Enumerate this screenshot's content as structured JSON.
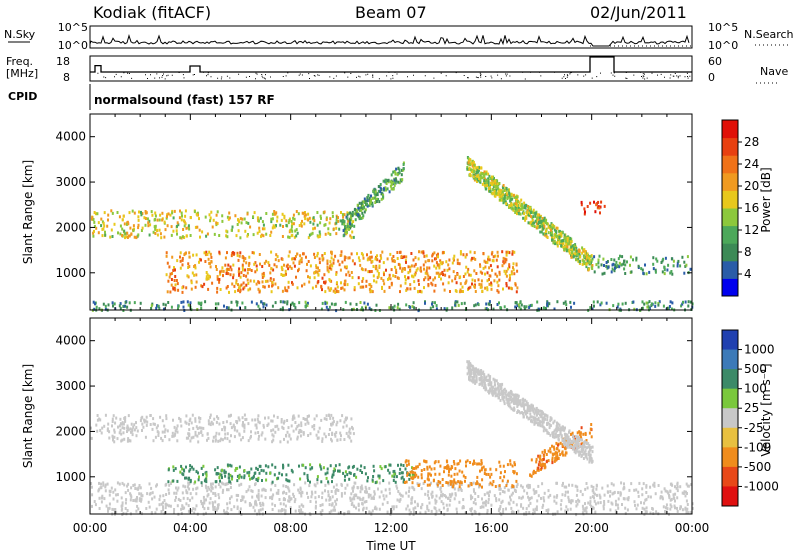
{
  "header": {
    "station": "Kodiak (fitACF)",
    "beam": "Beam 07",
    "date": "02/Jun/2011"
  },
  "strip": {
    "nsky_label": "N.Sky",
    "nsky_ticks": [
      "10^5",
      "10^0"
    ],
    "nsearch_label": "N.Search",
    "nsearch_ticks": [
      "10^5",
      "10^0"
    ],
    "freq_label": "Freq.",
    "freq_unit": "[MHz]",
    "freq_ticks": [
      "18",
      "8"
    ],
    "nave_label": "Nave",
    "nave_ticks": [
      "60",
      "0"
    ],
    "cpid_label": "CPID",
    "cpid_text": "normalsound (fast) 157 RF"
  },
  "panels": {
    "ylabel": "Slant Range [km]",
    "yticks": [
      "4000",
      "3000",
      "2000",
      "1000"
    ],
    "xlabel": "Time UT",
    "xticks": [
      "00:00",
      "04:00",
      "08:00",
      "12:00",
      "16:00",
      "20:00",
      "00:00"
    ]
  },
  "colorbars": {
    "power": {
      "label": "Power [dB]",
      "ticks": [
        "28",
        "24",
        "20",
        "16",
        "12",
        "8",
        "4"
      ],
      "colors": [
        "#0000ee",
        "#2a5ca8",
        "#3c8a56",
        "#4ca85a",
        "#8cc83c",
        "#e8c81c",
        "#f09a20",
        "#f07218",
        "#e84010",
        "#e01008"
      ]
    },
    "velocity": {
      "label": "Velocity [m s⁻¹]",
      "ticks": [
        "1000",
        "500",
        "100",
        "25",
        "-25",
        "-100",
        "-500",
        "-1000"
      ],
      "colors": [
        "#2040b0",
        "#3c7ab8",
        "#3c8a68",
        "#7ac83c",
        "#c8c8c8",
        "#e8c040",
        "#f08c1c",
        "#e84818",
        "#e01010"
      ]
    }
  },
  "chart_data": [
    {
      "type": "line",
      "title": "N.Sky / N.Search",
      "xlabel": "Time UT",
      "ylabel": "N.Sky",
      "xlim": [
        "00:00",
        "24:00"
      ],
      "ylim": [
        1,
        100000
      ],
      "log_scale": true,
      "series": [
        {
          "name": "N.Sky",
          "x": [
            "00:00",
            "02:00",
            "04:00",
            "06:00",
            "08:00",
            "10:00",
            "12:00",
            "14:00",
            "16:00",
            "18:00",
            "20:00",
            "22:00",
            "24:00"
          ],
          "values": [
            10,
            12,
            10,
            14,
            11,
            13,
            12,
            15,
            11,
            12,
            3,
            9,
            10
          ]
        },
        {
          "name": "N.Search",
          "x": [
            "00:00",
            "06:00",
            "12:00",
            "18:00",
            "20:00",
            "21:00",
            "24:00"
          ],
          "values": [
            1,
            1,
            1,
            1,
            1,
            1,
            1
          ]
        }
      ]
    },
    {
      "type": "line",
      "title": "Freq. / Nave",
      "xlim": [
        "00:00",
        "24:00"
      ],
      "series": [
        {
          "name": "Freq.",
          "unit": "MHz",
          "x": [
            "00:00",
            "00:15",
            "00:30",
            "04:00",
            "04:15",
            "19:45",
            "20:00",
            "20:50",
            "21:00",
            "24:00"
          ],
          "values": [
            12,
            16,
            12,
            12,
            13,
            12,
            18,
            18,
            12,
            12
          ]
        },
        {
          "name": "Nave",
          "x": [
            "00:00",
            "12:00",
            "24:00"
          ],
          "values": [
            22,
            22,
            22
          ]
        }
      ]
    },
    {
      "type": "heatmap",
      "title": "Power [dB]",
      "xlabel": "Time UT",
      "ylabel": "Slant Range [km]",
      "xlim": [
        "00:00",
        "24:00"
      ],
      "ylim": [
        180,
        4500
      ],
      "colorbar": {
        "label": "Power [dB]",
        "ticks": [
          4,
          8,
          12,
          16,
          20,
          24,
          28
        ],
        "range": [
          0,
          30
        ]
      },
      "features": [
        {
          "name": "ground scatter band",
          "time": [
            "00:00",
            "24:00"
          ],
          "range_km": [
            200,
            400
          ],
          "power_db": 8
        },
        {
          "name": "upper E/F band",
          "time": [
            "00:00",
            "10:30"
          ],
          "range_km": [
            1800,
            2400
          ],
          "power_db": 16
        },
        {
          "name": "rising arc",
          "time": [
            "10:00",
            "12:30"
          ],
          "range_km": [
            2000,
            3300
          ],
          "power_db": 10
        },
        {
          "name": "lower F band",
          "time": [
            "03:00",
            "17:00"
          ],
          "range_km": [
            600,
            1500
          ],
          "power_db": 20
        },
        {
          "name": "descending arc",
          "time": [
            "15:00",
            "20:00"
          ],
          "range_km": [
            1200,
            3400
          ],
          "power_db": 14
        },
        {
          "name": "late patch",
          "time": [
            "19:30",
            "20:30"
          ],
          "range_km": [
            2300,
            2600
          ],
          "power_db": 26
        },
        {
          "name": "late low band",
          "time": [
            "20:00",
            "24:00"
          ],
          "range_km": [
            1000,
            1400
          ],
          "power_db": 8
        }
      ]
    },
    {
      "type": "heatmap",
      "title": "Velocity",
      "xlabel": "Time UT",
      "ylabel": "Slant Range [km]",
      "xlim": [
        "00:00",
        "24:00"
      ],
      "ylim": [
        180,
        4500
      ],
      "colorbar": {
        "label": "Velocity [m s⁻¹]",
        "ticks": [
          1000,
          500,
          100,
          25,
          -25,
          -100,
          -500,
          -1000
        ]
      },
      "features": [
        {
          "name": "ground scatter",
          "time": [
            "00:00",
            "24:00"
          ],
          "range_km": [
            200,
            900
          ],
          "velocity": 0
        },
        {
          "name": "upper band",
          "time": [
            "00:00",
            "10:30"
          ],
          "range_km": [
            1800,
            2400
          ],
          "velocity": 0
        },
        {
          "name": "green band",
          "time": [
            "03:00",
            "13:00"
          ],
          "range_km": [
            900,
            1300
          ],
          "velocity": 150
        },
        {
          "name": "orange patches",
          "time": [
            "12:30",
            "17:00"
          ],
          "range_km": [
            800,
            1400
          ],
          "velocity": -300
        },
        {
          "name": "orange arc",
          "time": [
            "17:30",
            "20:00"
          ],
          "range_km": [
            1200,
            2100
          ],
          "velocity": -400
        },
        {
          "name": "descending grey arc",
          "time": [
            "15:00",
            "20:00"
          ],
          "range_km": [
            1500,
            3400
          ],
          "velocity": 0
        }
      ]
    }
  ]
}
